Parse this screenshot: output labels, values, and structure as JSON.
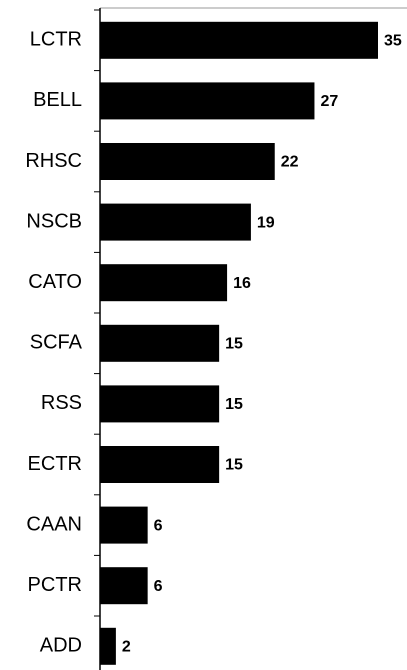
{
  "chart_data": {
    "type": "bar",
    "orientation": "horizontal",
    "categories": [
      "LCTR",
      "BELL",
      "RHSC",
      "NSCB",
      "CATO",
      "SCFA",
      "RSS",
      "ECTR",
      "CAAN",
      "PCTR",
      "ADD"
    ],
    "values": [
      35,
      27,
      22,
      19,
      16,
      15,
      15,
      15,
      6,
      6,
      2
    ],
    "color": "#000000"
  }
}
